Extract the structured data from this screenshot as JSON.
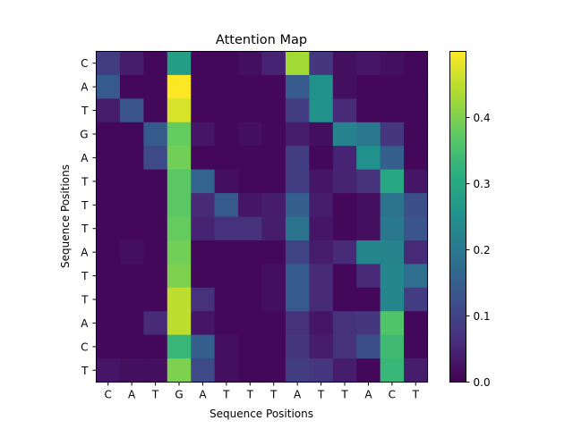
{
  "chart_data": {
    "type": "heatmap",
    "title": "Attention Map",
    "xlabel": "Sequence Positions",
    "ylabel": "Sequence Positions",
    "x_categories": [
      "C",
      "A",
      "T",
      "G",
      "A",
      "T",
      "T",
      "T",
      "A",
      "T",
      "T",
      "A",
      "C",
      "T"
    ],
    "y_categories": [
      "C",
      "A",
      "T",
      "G",
      "A",
      "T",
      "T",
      "T",
      "A",
      "T",
      "T",
      "A",
      "C",
      "T"
    ],
    "colormap": "viridis",
    "vmin": 0.0,
    "vmax": 0.5,
    "colorbar_ticks": [
      "0.0",
      "0.1",
      "0.2",
      "0.3",
      "0.4"
    ],
    "values": [
      [
        0.09,
        0.04,
        0.01,
        0.28,
        0.01,
        0.01,
        0.02,
        0.05,
        0.43,
        0.08,
        0.02,
        0.03,
        0.02,
        0.01
      ],
      [
        0.14,
        0.01,
        0.01,
        0.5,
        0.01,
        0.01,
        0.01,
        0.01,
        0.14,
        0.25,
        0.02,
        0.01,
        0.01,
        0.01
      ],
      [
        0.04,
        0.13,
        0.01,
        0.47,
        0.01,
        0.01,
        0.01,
        0.01,
        0.09,
        0.25,
        0.06,
        0.01,
        0.01,
        0.01
      ],
      [
        0.01,
        0.01,
        0.14,
        0.38,
        0.03,
        0.01,
        0.02,
        0.01,
        0.04,
        0.02,
        0.22,
        0.2,
        0.08,
        0.01
      ],
      [
        0.01,
        0.01,
        0.11,
        0.39,
        0.01,
        0.01,
        0.01,
        0.01,
        0.09,
        0.01,
        0.05,
        0.25,
        0.15,
        0.01
      ],
      [
        0.01,
        0.01,
        0.01,
        0.37,
        0.16,
        0.02,
        0.01,
        0.01,
        0.09,
        0.03,
        0.05,
        0.07,
        0.3,
        0.03
      ],
      [
        0.01,
        0.01,
        0.01,
        0.37,
        0.06,
        0.14,
        0.03,
        0.04,
        0.15,
        0.04,
        0.01,
        0.02,
        0.19,
        0.12
      ],
      [
        0.01,
        0.01,
        0.01,
        0.38,
        0.05,
        0.07,
        0.07,
        0.04,
        0.19,
        0.03,
        0.01,
        0.02,
        0.2,
        0.13
      ],
      [
        0.01,
        0.02,
        0.01,
        0.39,
        0.01,
        0.01,
        0.01,
        0.01,
        0.1,
        0.04,
        0.06,
        0.23,
        0.22,
        0.06
      ],
      [
        0.01,
        0.01,
        0.01,
        0.4,
        0.01,
        0.01,
        0.01,
        0.02,
        0.14,
        0.06,
        0.01,
        0.06,
        0.23,
        0.18
      ],
      [
        0.01,
        0.01,
        0.01,
        0.45,
        0.07,
        0.01,
        0.01,
        0.02,
        0.14,
        0.06,
        0.01,
        0.01,
        0.23,
        0.09
      ],
      [
        0.01,
        0.01,
        0.06,
        0.45,
        0.03,
        0.01,
        0.01,
        0.01,
        0.07,
        0.03,
        0.07,
        0.08,
        0.36,
        0.01
      ],
      [
        0.01,
        0.01,
        0.01,
        0.33,
        0.15,
        0.02,
        0.01,
        0.01,
        0.08,
        0.04,
        0.07,
        0.12,
        0.34,
        0.01
      ],
      [
        0.03,
        0.02,
        0.02,
        0.4,
        0.11,
        0.02,
        0.01,
        0.01,
        0.09,
        0.08,
        0.04,
        0.01,
        0.33,
        0.04
      ]
    ]
  }
}
